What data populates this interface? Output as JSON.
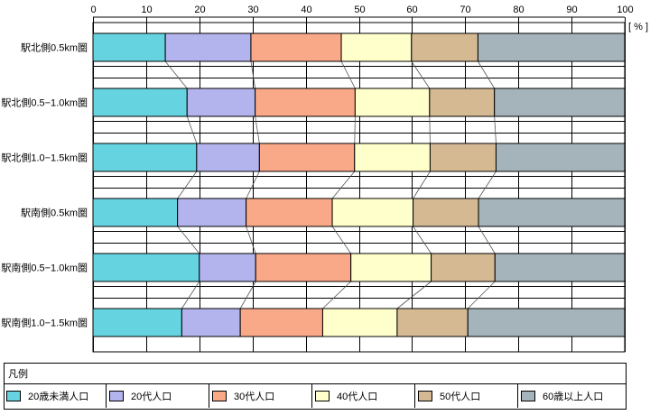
{
  "chart_data": {
    "type": "bar",
    "orientation": "horizontal",
    "stacked": true,
    "unit_label": "[ % ]",
    "xlim": [
      0,
      100
    ],
    "xticks": [
      "0",
      "10",
      "20",
      "30",
      "40",
      "50",
      "60",
      "70",
      "80",
      "90",
      "100"
    ],
    "categories": [
      "駅北側0.5km圏",
      "駅北側0.5−1.0km圏",
      "駅北側1.0−1.5km圏",
      "駅南側0.5km圏",
      "駅南側0.5−1.0km圏",
      "駅南側1.0−1.5km圏"
    ],
    "series": [
      {
        "name": "20歳未満人口",
        "color": "#66d3e0",
        "values": [
          13.6,
          17.7,
          19.5,
          15.9,
          20.0,
          16.7
        ]
      },
      {
        "name": "20代人口",
        "color": "#b3b3ed",
        "values": [
          16.1,
          12.8,
          11.8,
          12.9,
          10.6,
          11.0
        ]
      },
      {
        "name": "30代人口",
        "color": "#faa988",
        "values": [
          17.0,
          18.8,
          17.9,
          16.2,
          17.9,
          15.5
        ]
      },
      {
        "name": "40代人口",
        "color": "#ffffcc",
        "values": [
          13.2,
          14.0,
          14.2,
          15.2,
          15.1,
          14.0
        ]
      },
      {
        "name": "50代人口",
        "color": "#d4b993",
        "values": [
          12.5,
          12.2,
          12.4,
          12.3,
          12.0,
          13.3
        ]
      },
      {
        "name": "60歳以上人口",
        "color": "#a4b4ba",
        "values": [
          27.6,
          24.5,
          24.2,
          27.5,
          24.4,
          29.5
        ]
      }
    ],
    "connectors": true,
    "grid": true
  },
  "legend": {
    "title": "凡例"
  }
}
